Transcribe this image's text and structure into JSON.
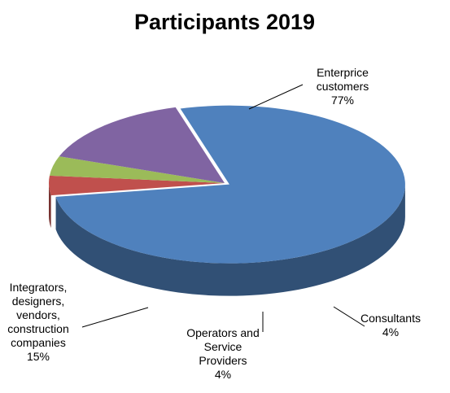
{
  "chart_data": {
    "type": "pie",
    "title": "Participants 2019",
    "categories": [
      "Enterprice customers",
      "Consultants",
      "Operators and Service Providers",
      "Integrators, designers, vendors, construction companies"
    ],
    "values": [
      77,
      4,
      4,
      15
    ],
    "unit": "%",
    "colors": [
      "#4F81BD",
      "#C0504D",
      "#9BBB59",
      "#8064A2"
    ],
    "style": "3d-exploded-tilted",
    "legend": "none",
    "data_labels": [
      {
        "lines": [
          "Enterprice",
          "customers",
          "77%"
        ]
      },
      {
        "lines": [
          "Consultants",
          "4%"
        ]
      },
      {
        "lines": [
          "Operators and",
          "Service",
          "Providers",
          "4%"
        ]
      },
      {
        "lines": [
          "Integrators,",
          "designers,",
          "vendors,",
          "construction",
          "companies",
          "15%"
        ]
      }
    ]
  }
}
